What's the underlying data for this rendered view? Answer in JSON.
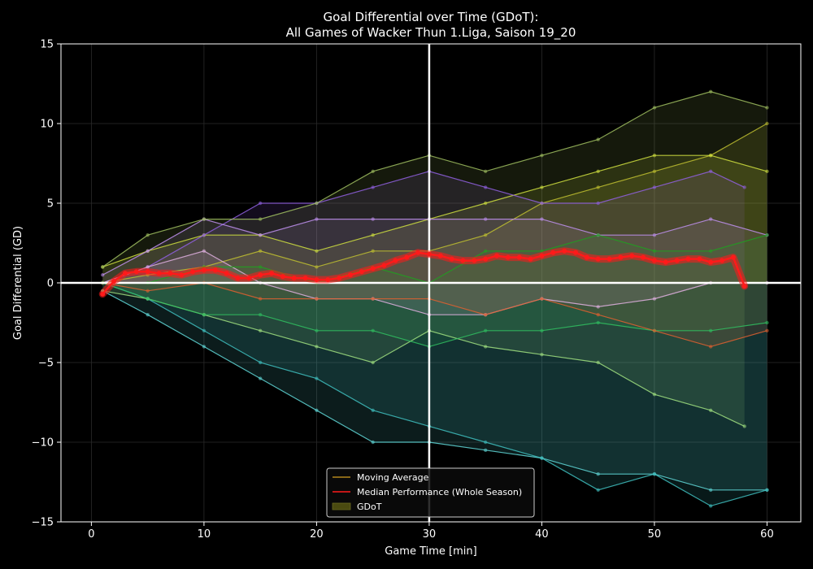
{
  "chart_data": {
    "type": "line",
    "title": "Goal Differential over Time (GDoT):",
    "subtitle": "All Games of Wacker Thun 1.Liga, Saison 19_20",
    "xlabel": "Game Time [min]",
    "ylabel": "Goal Differential (GD)",
    "xlim": [
      -2.7,
      63
    ],
    "ylim": [
      -15,
      15
    ],
    "xticks": [
      0,
      10,
      20,
      30,
      40,
      50,
      60
    ],
    "yticks": [
      -15,
      -10,
      -5,
      0,
      5,
      10,
      15
    ],
    "grid": true,
    "reference_lines": {
      "x": 30,
      "y": 0
    },
    "legend": {
      "position": "bottom-center",
      "entries": [
        {
          "label": "Moving Average",
          "color": "#d4a020"
        },
        {
          "label": "Median Performance (Whole Season)",
          "color": "#ff1a1a"
        },
        {
          "label": "GDoT",
          "color": "#4a4a10"
        }
      ]
    },
    "colors": {
      "background": "#000000",
      "text": "#ffffff",
      "median": "#ff1a1a",
      "reference": "#ffffff"
    },
    "median_series": {
      "name": "Median Performance (Whole Season)",
      "x": [
        1,
        2,
        3,
        4,
        5,
        6,
        7,
        8,
        9,
        10,
        11,
        12,
        13,
        14,
        15,
        16,
        17,
        18,
        19,
        20,
        21,
        22,
        23,
        24,
        25,
        26,
        27,
        28,
        29,
        30,
        31,
        32,
        33,
        34,
        35,
        36,
        37,
        38,
        39,
        40,
        41,
        42,
        43,
        44,
        45,
        46,
        47,
        48,
        49,
        50,
        51,
        52,
        53,
        54,
        55,
        56,
        57,
        58
      ],
      "values": [
        -0.7,
        0.1,
        0.6,
        0.7,
        0.7,
        0.6,
        0.6,
        0.5,
        0.7,
        0.8,
        0.8,
        0.6,
        0.3,
        0.3,
        0.5,
        0.6,
        0.4,
        0.3,
        0.3,
        0.2,
        0.2,
        0.3,
        0.5,
        0.7,
        0.9,
        1.1,
        1.4,
        1.6,
        1.9,
        1.8,
        1.7,
        1.5,
        1.4,
        1.4,
        1.5,
        1.7,
        1.6,
        1.6,
        1.5,
        1.7,
        1.9,
        2.0,
        1.9,
        1.6,
        1.5,
        1.5,
        1.6,
        1.7,
        1.6,
        1.4,
        1.3,
        1.4,
        1.5,
        1.5,
        1.3,
        1.4,
        1.6,
        -0.2
      ]
    },
    "game_series": [
      {
        "color": "#60d8d8",
        "x": [
          1,
          5,
          10,
          15,
          20,
          25,
          30,
          35,
          40,
          45,
          50,
          55,
          60
        ],
        "values": [
          -0.5,
          -2,
          -4,
          -6,
          -8,
          -10,
          -10,
          -10.5,
          -11,
          -12,
          -12,
          -13,
          -13
        ]
      },
      {
        "color": "#40c0c0",
        "x": [
          1,
          5,
          10,
          15,
          20,
          25,
          30,
          35,
          40,
          45,
          50,
          55,
          60
        ],
        "values": [
          0,
          -1,
          -3,
          -5,
          -6,
          -8,
          -9,
          -10,
          -11,
          -13,
          -12,
          -14,
          -13
        ]
      },
      {
        "color": "#a0e080",
        "x": [
          1,
          5,
          10,
          15,
          20,
          25,
          30,
          35,
          40,
          45,
          50,
          55,
          58
        ],
        "values": [
          -0.5,
          -1,
          -2,
          -3,
          -4,
          -5,
          -3,
          -4,
          -4.5,
          -5,
          -7,
          -8,
          -9
        ]
      },
      {
        "color": "#30c060",
        "x": [
          1,
          5,
          10,
          15,
          20,
          25,
          30,
          35,
          40,
          45,
          50,
          55,
          60
        ],
        "values": [
          0,
          -1,
          -2,
          -2,
          -3,
          -3,
          -4,
          -3,
          -3,
          -2.5,
          -3,
          -3,
          -2.5
        ]
      },
      {
        "color": "#c0c030",
        "x": [
          1,
          5,
          10,
          15,
          20,
          25,
          30,
          35,
          40,
          45,
          50,
          55,
          60
        ],
        "values": [
          0,
          0.5,
          1,
          2,
          1,
          2,
          2,
          3,
          5,
          6,
          7,
          8,
          10
        ]
      },
      {
        "color": "#d0e040",
        "x": [
          1,
          5,
          10,
          15,
          20,
          25,
          30,
          35,
          40,
          45,
          50,
          55,
          60
        ],
        "values": [
          1,
          2,
          3,
          3,
          2,
          3,
          4,
          5,
          6,
          7,
          8,
          8,
          7
        ]
      },
      {
        "color": "#9060e0",
        "x": [
          1,
          5,
          10,
          15,
          20,
          25,
          30,
          35,
          40,
          45,
          50,
          55,
          58
        ],
        "values": [
          0,
          1,
          3,
          5,
          5,
          6,
          7,
          6,
          5,
          5,
          6,
          7,
          6
        ]
      },
      {
        "color": "#c090f0",
        "x": [
          1,
          5,
          10,
          15,
          20,
          25,
          30,
          35,
          40,
          45,
          50,
          55,
          60
        ],
        "values": [
          0.5,
          2,
          4,
          3,
          4,
          4,
          4,
          4,
          4,
          3,
          3,
          4,
          3
        ]
      },
      {
        "color": "#a0c060",
        "x": [
          1,
          5,
          10,
          15,
          20,
          25,
          30,
          35,
          40,
          45,
          50,
          55,
          60
        ],
        "values": [
          1,
          3,
          4,
          4,
          5,
          7,
          8,
          7,
          8,
          9,
          11,
          12,
          11
        ]
      },
      {
        "color": "#e0b0e0",
        "x": [
          1,
          5,
          10,
          15,
          20,
          25,
          30,
          35,
          40,
          45,
          50,
          55,
          60
        ],
        "values": [
          0,
          1,
          2,
          0,
          -1,
          -1,
          -2,
          -2,
          -1,
          -1.5,
          -1,
          0,
          0
        ]
      },
      {
        "color": "#e06030",
        "x": [
          1,
          5,
          10,
          15,
          20,
          25,
          30,
          35,
          40,
          45,
          50,
          55,
          60
        ],
        "values": [
          0,
          -0.5,
          0,
          -1,
          -1,
          -1,
          -1,
          -2,
          -1,
          -2,
          -3,
          -4,
          -3
        ]
      },
      {
        "color": "#20a020",
        "x": [
          1,
          5,
          10,
          15,
          20,
          25,
          30,
          35,
          40,
          45,
          50,
          55,
          60
        ],
        "values": [
          0,
          0,
          1,
          1,
          0,
          1,
          0,
          2,
          2,
          3,
          2,
          2,
          3
        ]
      }
    ]
  }
}
